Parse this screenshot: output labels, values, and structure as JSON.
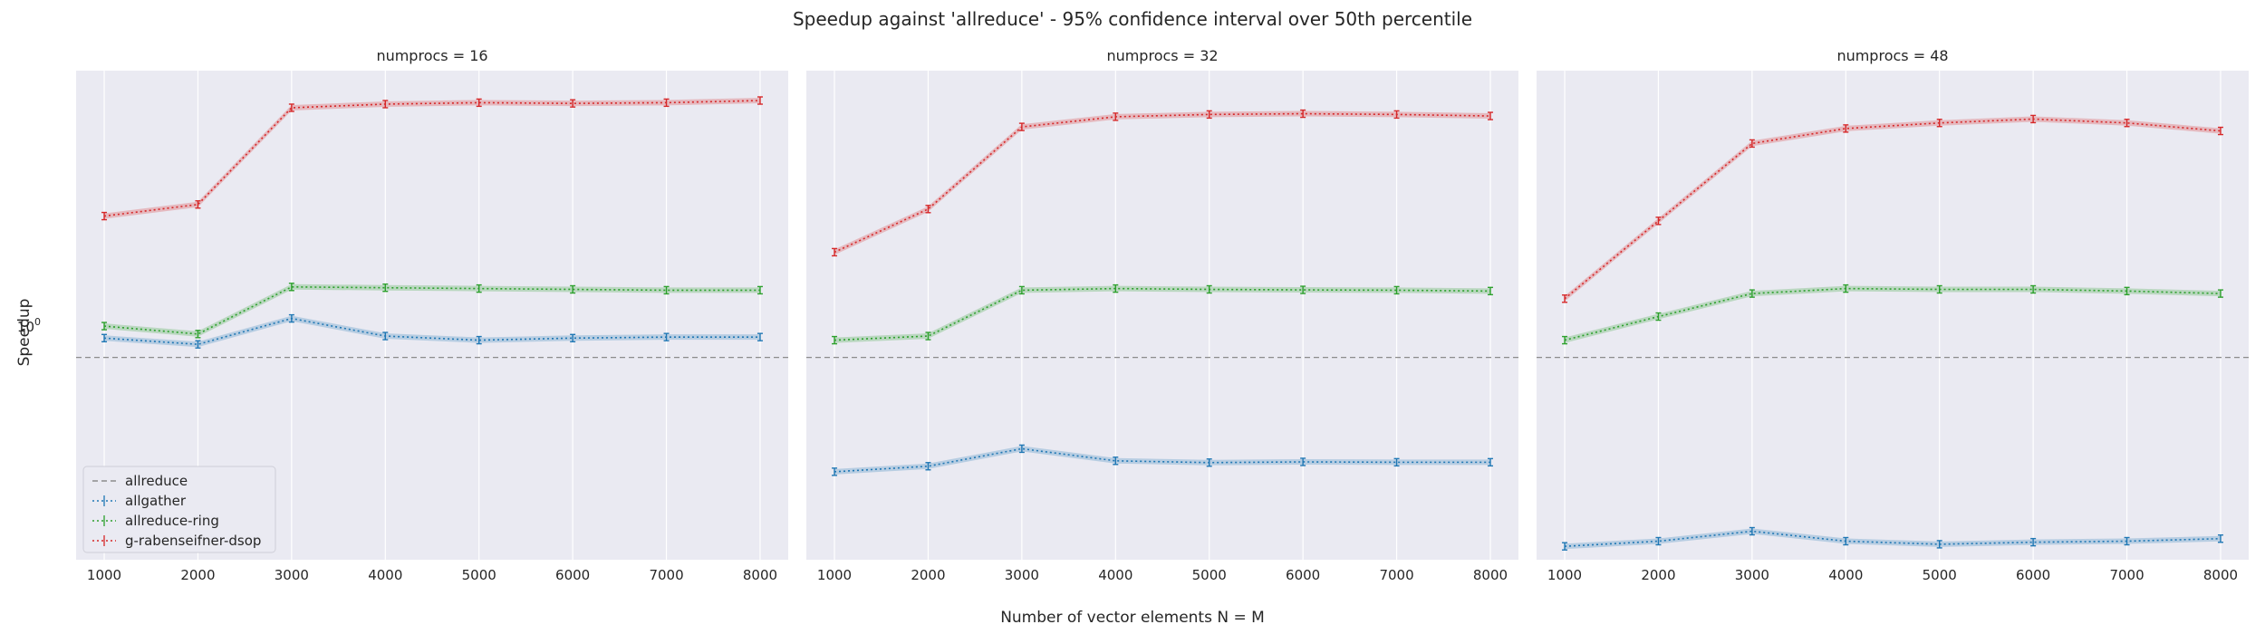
{
  "figure": {
    "suptitle": "Speedup against 'allreduce' - 95% confidence interval over 50th percentile",
    "xlabel": "Number of vector elements N = M",
    "ylabel": "Speedup",
    "y_ref_tick": "10",
    "y_ref_tick_exp": "0"
  },
  "colors": {
    "background": "#eaeaf2",
    "grid": "#ffffff",
    "allreduce": "#8c8c8c",
    "allgather": "#1f77b4",
    "allreduce-ring": "#2ca02c",
    "g-rabenseifner-dsop": "#d62728"
  },
  "legend": {
    "placement": "lower-left",
    "entries": [
      "allreduce",
      "allgather",
      "allreduce-ring",
      "g-rabenseifner-dsop"
    ]
  },
  "chart_data": [
    {
      "type": "line",
      "title": "numprocs = 16",
      "yscale": "log",
      "grid": true,
      "x": [
        1000,
        2000,
        3000,
        4000,
        5000,
        6000,
        7000,
        8000
      ],
      "series": [
        {
          "name": "allreduce",
          "values": [
            1,
            1,
            1,
            1,
            1,
            1,
            1,
            1
          ]
        },
        {
          "name": "allgather",
          "values": [
            1.09,
            1.06,
            1.19,
            1.1,
            1.08,
            1.09,
            1.095,
            1.095
          ]
        },
        {
          "name": "allreduce-ring",
          "values": [
            1.15,
            1.11,
            1.37,
            1.365,
            1.36,
            1.355,
            1.35,
            1.35
          ]
        },
        {
          "name": "g-rabenseifner-dsop",
          "values": [
            1.88,
            1.98,
            3.05,
            3.1,
            3.12,
            3.11,
            3.12,
            3.15
          ]
        }
      ]
    },
    {
      "type": "line",
      "title": "numprocs = 32",
      "yscale": "log",
      "grid": true,
      "x": [
        1000,
        2000,
        3000,
        4000,
        5000,
        6000,
        7000,
        8000
      ],
      "series": [
        {
          "name": "allreduce",
          "values": [
            1,
            1,
            1,
            1,
            1,
            1,
            1,
            1
          ]
        },
        {
          "name": "allgather",
          "values": [
            0.6,
            0.615,
            0.665,
            0.63,
            0.625,
            0.627,
            0.626,
            0.626
          ]
        },
        {
          "name": "allreduce-ring",
          "values": [
            1.08,
            1.1,
            1.35,
            1.36,
            1.355,
            1.352,
            1.35,
            1.345
          ]
        },
        {
          "name": "g-rabenseifner-dsop",
          "values": [
            1.6,
            1.94,
            2.8,
            2.93,
            2.96,
            2.97,
            2.96,
            2.94
          ]
        }
      ]
    },
    {
      "type": "line",
      "title": "numprocs = 48",
      "yscale": "log",
      "grid": true,
      "x": [
        1000,
        2000,
        3000,
        4000,
        5000,
        6000,
        7000,
        8000
      ],
      "series": [
        {
          "name": "allreduce",
          "values": [
            1,
            1,
            1,
            1,
            1,
            1,
            1,
            1
          ]
        },
        {
          "name": "allgather",
          "values": [
            0.43,
            0.44,
            0.46,
            0.44,
            0.434,
            0.438,
            0.44,
            0.445
          ]
        },
        {
          "name": "allreduce-ring",
          "values": [
            1.08,
            1.2,
            1.33,
            1.36,
            1.355,
            1.355,
            1.345,
            1.33
          ]
        },
        {
          "name": "g-rabenseifner-dsop",
          "values": [
            1.3,
            1.84,
            2.6,
            2.78,
            2.85,
            2.9,
            2.85,
            2.75
          ]
        }
      ]
    }
  ]
}
